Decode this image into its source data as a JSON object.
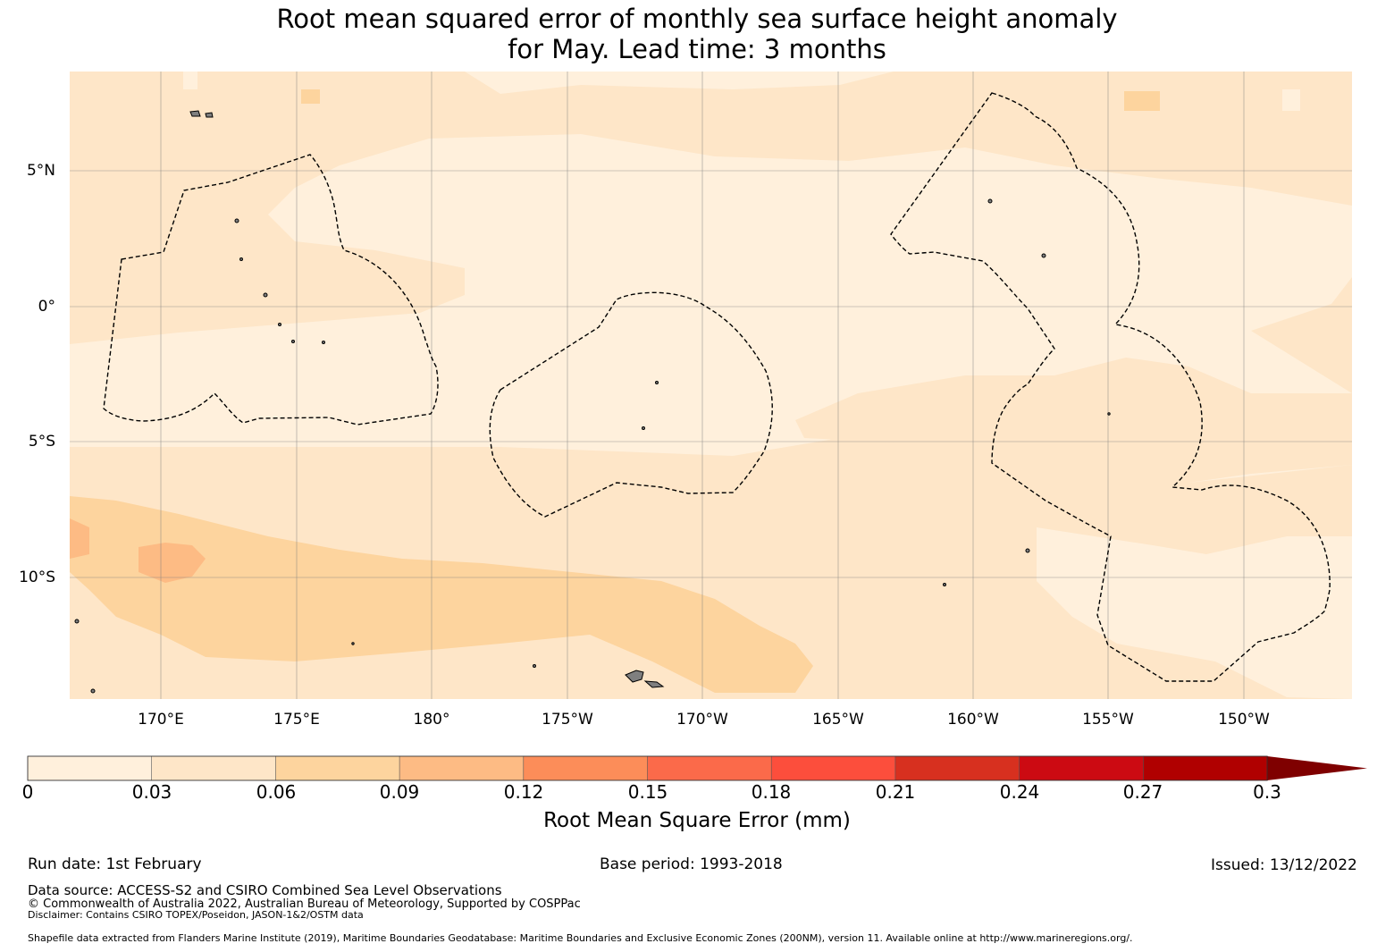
{
  "title_line1": "Root mean squared error of monthly sea surface height anomaly",
  "title_line2": "for May. Lead time: 3 months",
  "map": {
    "lat_labels": [
      "5°N",
      "0°",
      "5°S",
      "10°S"
    ],
    "lon_labels": [
      "170°E",
      "175°E",
      "180°",
      "175°W",
      "170°W",
      "165°W",
      "160°W",
      "155°W",
      "150°W"
    ],
    "colors": {
      "c0": "#fff0dc",
      "c1": "#fee6c8",
      "c2": "#fdd49e",
      "c3": "#fdbb84",
      "land": "#7f7f7f",
      "grid": "#808080"
    }
  },
  "colorbar": {
    "ticks": [
      "0",
      "0.03",
      "0.06",
      "0.09",
      "0.12",
      "0.15",
      "0.18",
      "0.21",
      "0.24",
      "0.27",
      "0.3"
    ],
    "colors": [
      "#fff0dc",
      "#fee6c8",
      "#fdd49e",
      "#fdbb84",
      "#fc8d59",
      "#fb6a4a",
      "#fc4e3c",
      "#d7301f",
      "#cc0a12",
      "#b00000",
      "#7f0000"
    ],
    "label": "Root Mean Square Error (mm)"
  },
  "footer": {
    "run_date": "Run date: 1st February",
    "base_period": "Base period: 1993-2018",
    "issued": "Issued: 13/12/2022",
    "data_source": "Data source: ACCESS-S2 and CSIRO Combined Sea Level Observations",
    "copyright": "© Commonwealth of Australia 2022, Australian Bureau of Meteorology, Supported by COSPPac",
    "disclaimer": "Disclaimer: Contains CSIRO TOPEX/Poseidon, JASON-1&2/OSTM data",
    "shapefile": "Shapefile data extracted from Flanders Marine Institute (2019), Maritime Boundaries Geodatabase: Maritime Boundaries and Exclusive Economic Zones (200NM), version 11. Available online at http://www.marineregions.org/."
  }
}
